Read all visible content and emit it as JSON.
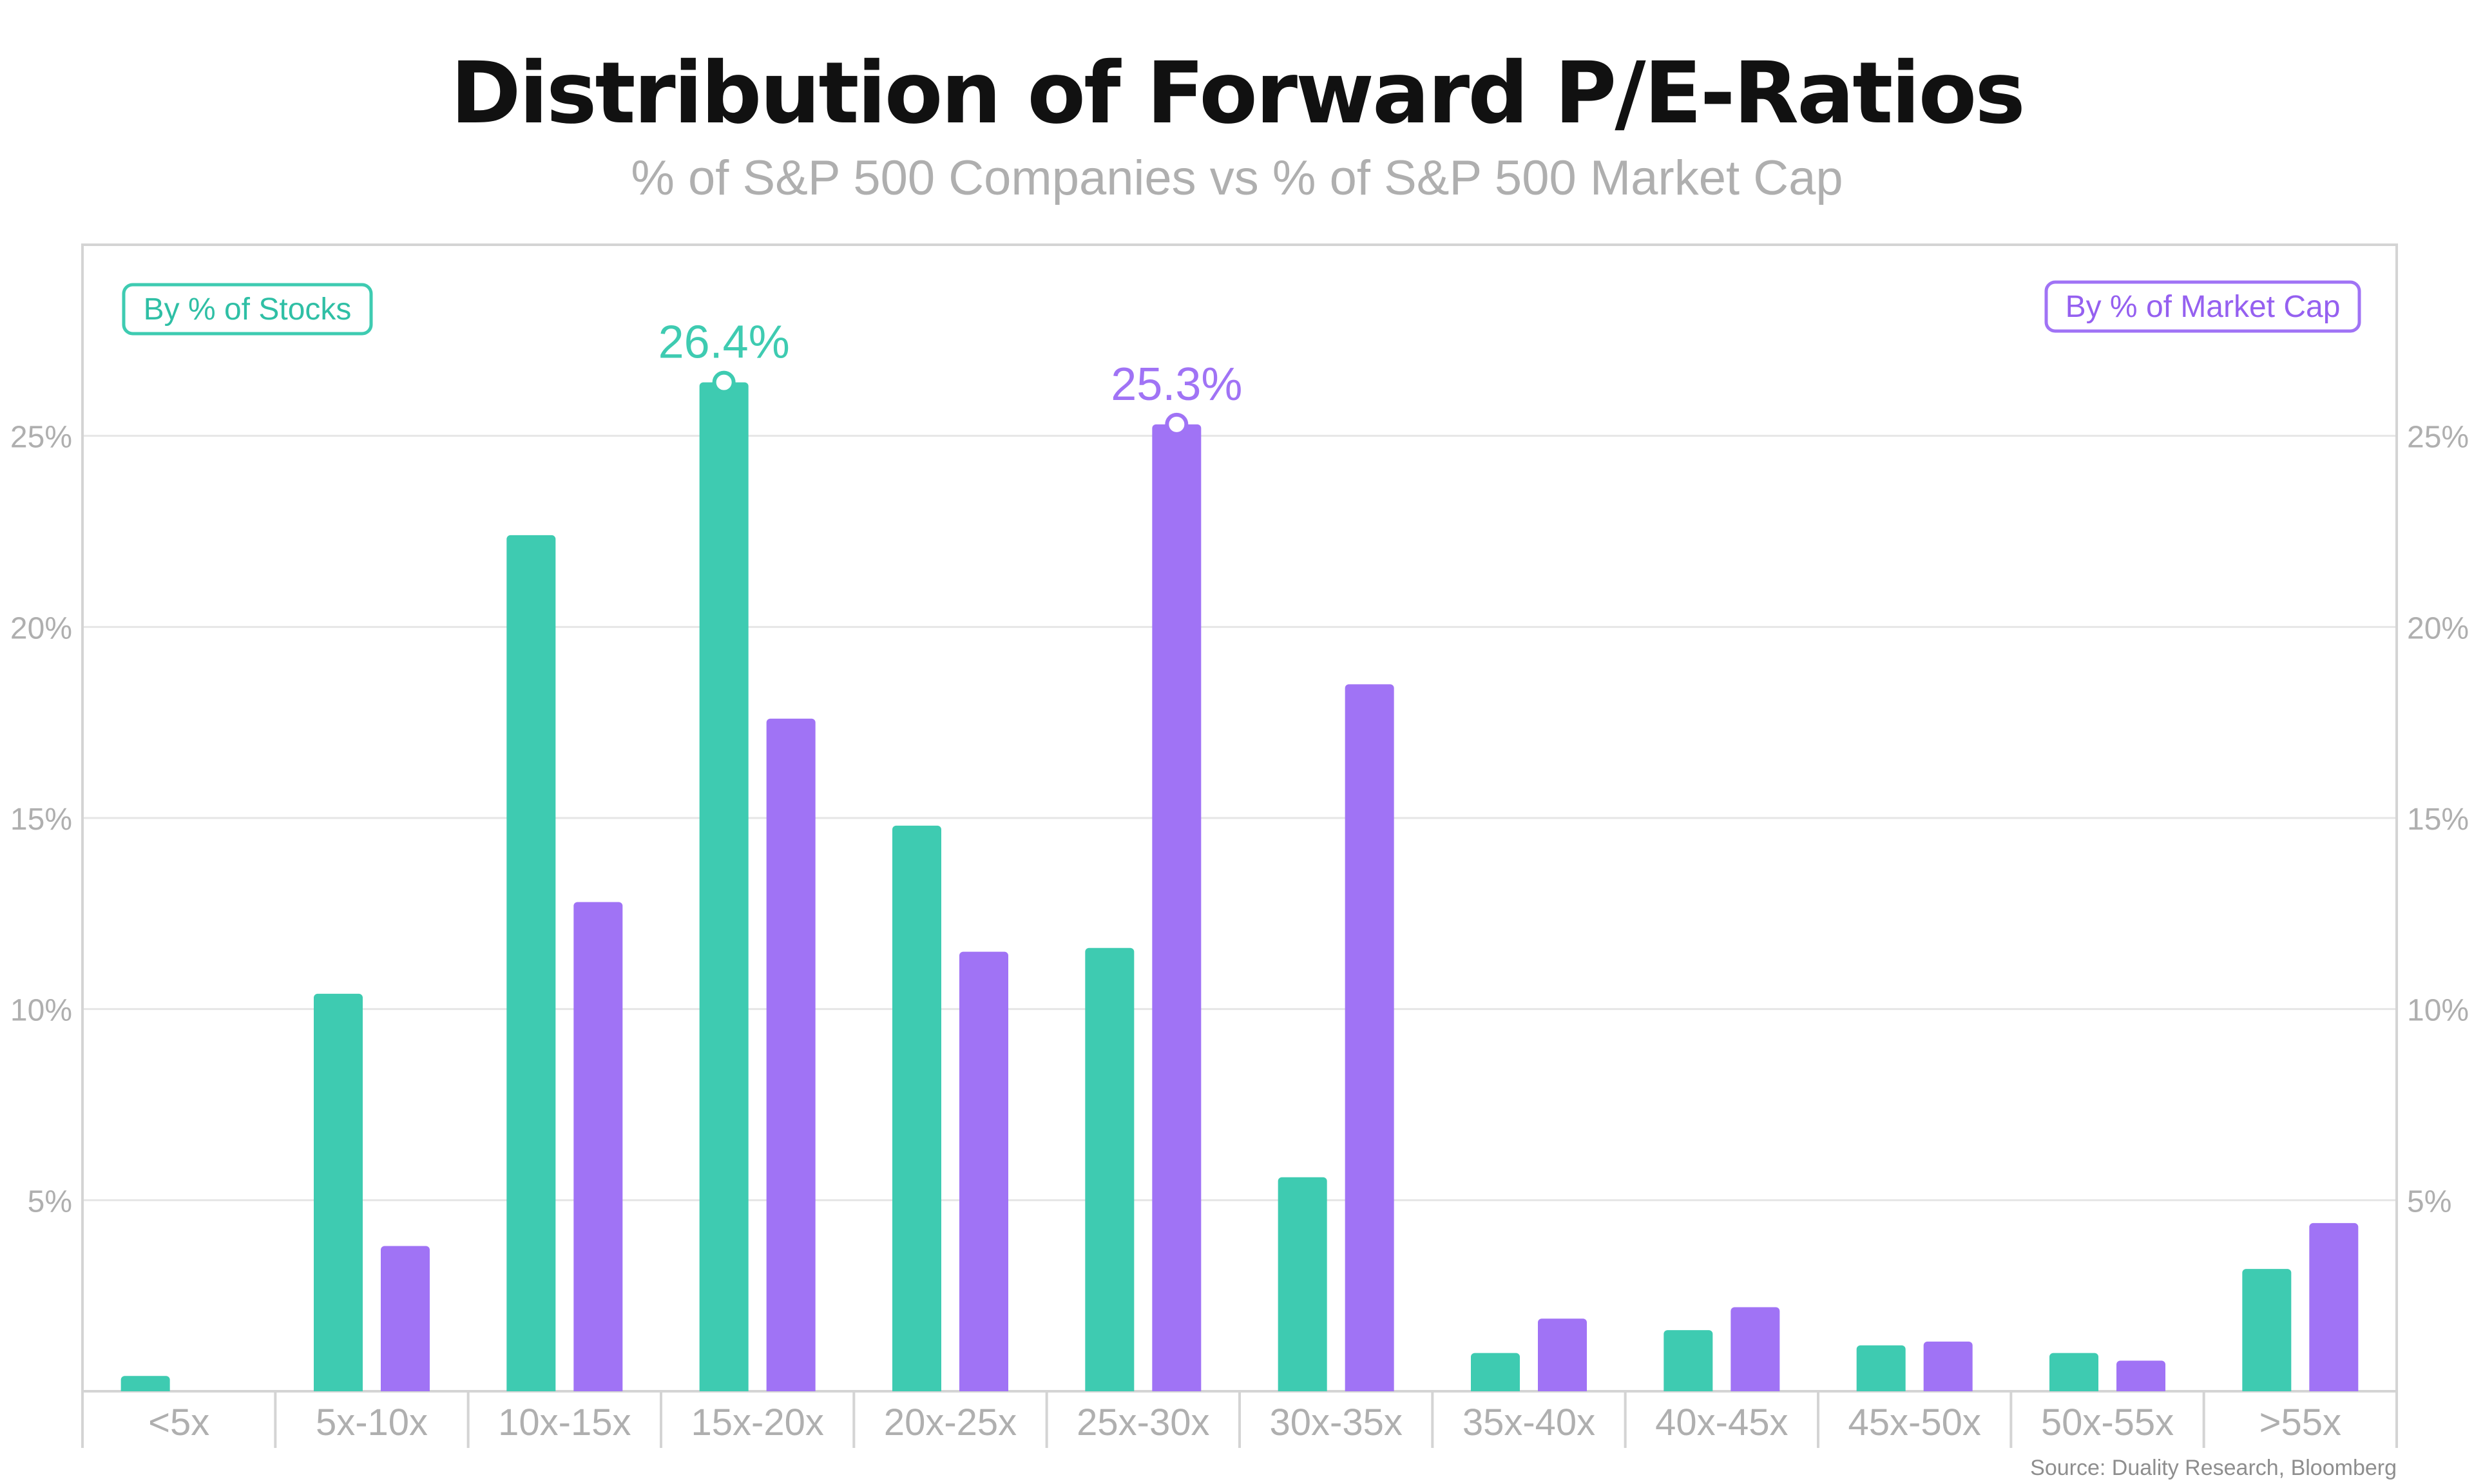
{
  "chart_data": {
    "type": "bar",
    "title": "Distribution of Forward P/E-Ratios",
    "subtitle": "% of S&P 500 Companies vs % of S&P 500 Market Cap",
    "categories": [
      "<5x",
      "5x-10x",
      "10x-15x",
      "15x-20x",
      "20x-25x",
      "25x-30x",
      "30x-35x",
      "35x-40x",
      "40x-45x",
      "45x-50x",
      "50x-55x",
      ">55x"
    ],
    "series": [
      {
        "name": "By % of Stocks",
        "color": "#3ECBB1",
        "values": [
          0.4,
          10.4,
          22.4,
          26.4,
          14.8,
          11.6,
          5.6,
          1.0,
          1.6,
          1.2,
          1.0,
          3.2
        ]
      },
      {
        "name": "By % of Market Cap",
        "color": "#A073F5",
        "values": [
          0,
          3.8,
          12.8,
          17.6,
          11.5,
          25.3,
          18.5,
          1.9,
          2.2,
          1.3,
          0.8,
          4.4
        ]
      }
    ],
    "ylim": [
      0,
      30
    ],
    "yticks": [
      5,
      10,
      15,
      20,
      25
    ],
    "ytick_labels": [
      "5%",
      "10%",
      "15%",
      "20%",
      "25%"
    ],
    "xlabel": "",
    "ylabel": "",
    "grid": true,
    "legend": [
      "top-left",
      "top-right"
    ],
    "annotations": [
      {
        "series": 0,
        "category": 3,
        "label": "26.4%"
      },
      {
        "series": 1,
        "category": 5,
        "label": "25.3%"
      }
    ],
    "source": "Source: Duality Research, Bloomberg"
  },
  "colors": {
    "stocks": "#3ECBB1",
    "market_cap": "#A073F5",
    "axis_text": "#AFAFAF",
    "grid": "#E6E6E6",
    "frame": "#D4D4D4",
    "title": "#111111",
    "subtitle": "#AFAFAF"
  }
}
